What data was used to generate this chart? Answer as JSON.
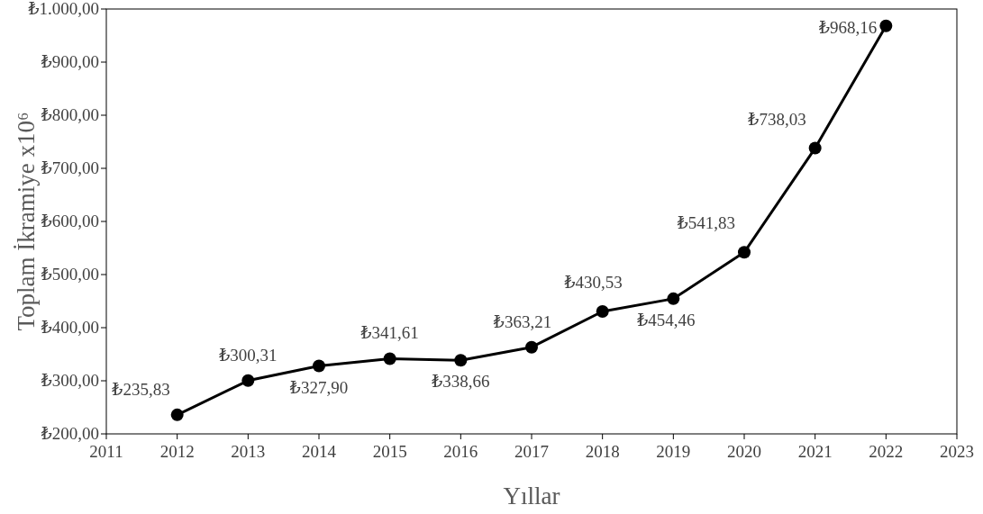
{
  "chart_data": {
    "type": "line",
    "xlabel": "Yıllar",
    "ylabel": "Toplam İkramiye x10⁶",
    "x": [
      2012,
      2013,
      2014,
      2015,
      2016,
      2017,
      2018,
      2019,
      2020,
      2021,
      2022
    ],
    "series": [
      {
        "color": "#000000",
        "values": [
          235.83,
          300.31,
          327.9,
          341.61,
          338.66,
          363.21,
          430.53,
          454.46,
          541.83,
          738.03,
          968.16
        ],
        "value_labels": [
          "₺235,83",
          "₺300,31",
          "₺327,90",
          "₺341,61",
          "₺338,66",
          "₺363,21",
          "₺430,53",
          "₺454,46",
          "₺541,83",
          "₺738,03",
          "₺968,16"
        ]
      }
    ],
    "xlim": [
      2011,
      2023
    ],
    "xticks": [
      2011,
      2012,
      2013,
      2014,
      2015,
      2016,
      2017,
      2018,
      2019,
      2020,
      2021,
      2022,
      2023
    ],
    "ylim": [
      200,
      1000
    ],
    "yticks": [
      {
        "value": 200,
        "label": "₺200,00"
      },
      {
        "value": 300,
        "label": "₺300,00"
      },
      {
        "value": 400,
        "label": "₺400,00"
      },
      {
        "value": 500,
        "label": "₺500,00"
      },
      {
        "value": 600,
        "label": "₺600,00"
      },
      {
        "value": 700,
        "label": "₺700,00"
      },
      {
        "value": 800,
        "label": "₺800,00"
      },
      {
        "value": 900,
        "label": "₺900,00"
      },
      {
        "value": 1000,
        "label": "₺1.000,00"
      }
    ],
    "grid": false,
    "marker": "circle",
    "line_style": "solid"
  }
}
